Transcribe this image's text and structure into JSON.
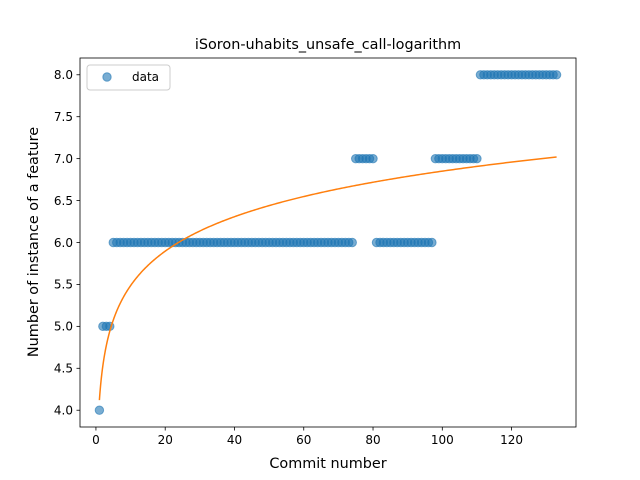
{
  "chart_data": {
    "type": "scatter",
    "title": "iSoron-uhabits_unsafe_call-logarithm",
    "xlabel": "Commit number",
    "ylabel": "Number of instance of a feature",
    "xlim": [
      -4.6,
      138.6
    ],
    "ylim": [
      3.8,
      8.2
    ],
    "xticks": [
      0,
      20,
      40,
      60,
      80,
      100,
      120
    ],
    "xtick_labels": [
      "0",
      "20",
      "40",
      "60",
      "80",
      "100",
      "120"
    ],
    "yticks": [
      4.0,
      4.5,
      5.0,
      5.5,
      6.0,
      6.5,
      7.0,
      7.5,
      8.0
    ],
    "ytick_labels": [
      "4.0",
      "4.5",
      "5.0",
      "5.5",
      "6.0",
      "6.5",
      "7.0",
      "7.5",
      "8.0"
    ],
    "grid": false,
    "legend": {
      "placement": "upper-left",
      "entries": [
        "data"
      ]
    },
    "colors": {
      "data": "#1f77b4",
      "fit": "#ff7f0e"
    },
    "series": [
      {
        "name": "data",
        "kind": "scatter",
        "points": [
          [
            1,
            4
          ],
          [
            2,
            5
          ],
          [
            3,
            5
          ],
          [
            4,
            5
          ],
          [
            5,
            6
          ],
          [
            6,
            6
          ],
          [
            7,
            6
          ],
          [
            8,
            6
          ],
          [
            9,
            6
          ],
          [
            10,
            6
          ],
          [
            11,
            6
          ],
          [
            12,
            6
          ],
          [
            13,
            6
          ],
          [
            14,
            6
          ],
          [
            15,
            6
          ],
          [
            16,
            6
          ],
          [
            17,
            6
          ],
          [
            18,
            6
          ],
          [
            19,
            6
          ],
          [
            20,
            6
          ],
          [
            21,
            6
          ],
          [
            22,
            6
          ],
          [
            23,
            6
          ],
          [
            24,
            6
          ],
          [
            25,
            6
          ],
          [
            26,
            6
          ],
          [
            27,
            6
          ],
          [
            28,
            6
          ],
          [
            29,
            6
          ],
          [
            30,
            6
          ],
          [
            31,
            6
          ],
          [
            32,
            6
          ],
          [
            33,
            6
          ],
          [
            34,
            6
          ],
          [
            35,
            6
          ],
          [
            36,
            6
          ],
          [
            37,
            6
          ],
          [
            38,
            6
          ],
          [
            39,
            6
          ],
          [
            40,
            6
          ],
          [
            41,
            6
          ],
          [
            42,
            6
          ],
          [
            43,
            6
          ],
          [
            44,
            6
          ],
          [
            45,
            6
          ],
          [
            46,
            6
          ],
          [
            47,
            6
          ],
          [
            48,
            6
          ],
          [
            49,
            6
          ],
          [
            50,
            6
          ],
          [
            51,
            6
          ],
          [
            52,
            6
          ],
          [
            53,
            6
          ],
          [
            54,
            6
          ],
          [
            55,
            6
          ],
          [
            56,
            6
          ],
          [
            57,
            6
          ],
          [
            58,
            6
          ],
          [
            59,
            6
          ],
          [
            60,
            6
          ],
          [
            61,
            6
          ],
          [
            62,
            6
          ],
          [
            63,
            6
          ],
          [
            64,
            6
          ],
          [
            65,
            6
          ],
          [
            66,
            6
          ],
          [
            67,
            6
          ],
          [
            68,
            6
          ],
          [
            69,
            6
          ],
          [
            70,
            6
          ],
          [
            71,
            6
          ],
          [
            72,
            6
          ],
          [
            73,
            6
          ],
          [
            74,
            6
          ],
          [
            75,
            7
          ],
          [
            76,
            7
          ],
          [
            77,
            7
          ],
          [
            78,
            7
          ],
          [
            79,
            7
          ],
          [
            80,
            7
          ],
          [
            81,
            6
          ],
          [
            82,
            6
          ],
          [
            83,
            6
          ],
          [
            84,
            6
          ],
          [
            85,
            6
          ],
          [
            86,
            6
          ],
          [
            87,
            6
          ],
          [
            88,
            6
          ],
          [
            89,
            6
          ],
          [
            90,
            6
          ],
          [
            91,
            6
          ],
          [
            92,
            6
          ],
          [
            93,
            6
          ],
          [
            94,
            6
          ],
          [
            95,
            6
          ],
          [
            96,
            6
          ],
          [
            97,
            6
          ],
          [
            98,
            7
          ],
          [
            99,
            7
          ],
          [
            100,
            7
          ],
          [
            101,
            7
          ],
          [
            102,
            7
          ],
          [
            103,
            7
          ],
          [
            104,
            7
          ],
          [
            105,
            7
          ],
          [
            106,
            7
          ],
          [
            107,
            7
          ],
          [
            108,
            7
          ],
          [
            109,
            7
          ],
          [
            110,
            7
          ],
          [
            111,
            8
          ],
          [
            112,
            8
          ],
          [
            113,
            8
          ],
          [
            114,
            8
          ],
          [
            115,
            8
          ],
          [
            116,
            8
          ],
          [
            117,
            8
          ],
          [
            118,
            8
          ],
          [
            119,
            8
          ],
          [
            120,
            8
          ],
          [
            121,
            8
          ],
          [
            122,
            8
          ],
          [
            123,
            8
          ],
          [
            124,
            8
          ],
          [
            125,
            8
          ],
          [
            126,
            8
          ],
          [
            127,
            8
          ],
          [
            128,
            8
          ],
          [
            129,
            8
          ],
          [
            130,
            8
          ],
          [
            131,
            8
          ],
          [
            132,
            8
          ],
          [
            133,
            8
          ]
        ]
      },
      {
        "kind": "line",
        "model": "a + b*ln(x)",
        "a": 4.12,
        "b": 0.593,
        "x_range": [
          1,
          133
        ]
      }
    ]
  }
}
